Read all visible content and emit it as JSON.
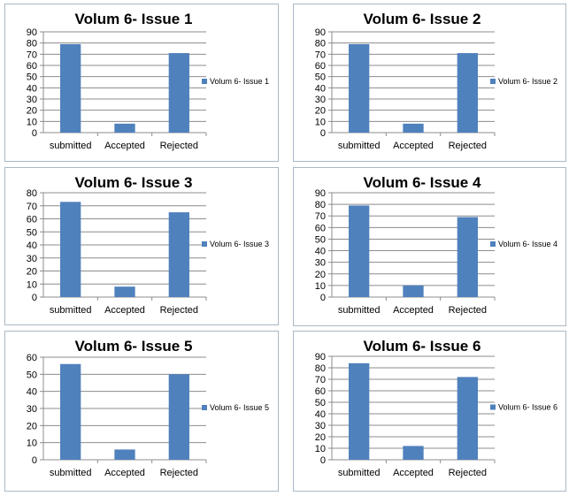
{
  "bar_color": "#4f81bd",
  "chart_data": [
    {
      "type": "bar",
      "title": "Volum 6- Issue 1",
      "categories": [
        "submitted",
        "Accepted",
        "Rejected"
      ],
      "series": [
        {
          "name": "Volum 6- Issue 1",
          "values": [
            79,
            8,
            71
          ]
        }
      ],
      "ylim": [
        0,
        90
      ],
      "ystep": 10,
      "grid": true,
      "legend": "right"
    },
    {
      "type": "bar",
      "title": "Volum 6- Issue 2",
      "categories": [
        "submitted",
        "Accepted",
        "Rejected"
      ],
      "series": [
        {
          "name": "Volum 6- Issue 2",
          "values": [
            79,
            8,
            71
          ]
        }
      ],
      "ylim": [
        0,
        90
      ],
      "ystep": 10,
      "grid": true,
      "legend": "right"
    },
    {
      "type": "bar",
      "title": "Volum 6- Issue 3",
      "categories": [
        "submitted",
        "Accepted",
        "Rejected"
      ],
      "series": [
        {
          "name": "Volum 6- Issue 3",
          "values": [
            73,
            8,
            65
          ]
        }
      ],
      "ylim": [
        0,
        80
      ],
      "ystep": 10,
      "grid": true,
      "legend": "right"
    },
    {
      "type": "bar",
      "title": "Volum 6- Issue 4",
      "categories": [
        "submitted",
        "Accepted",
        "Rejected"
      ],
      "series": [
        {
          "name": "Volum 6- Issue 4",
          "values": [
            79,
            10,
            69
          ]
        }
      ],
      "ylim": [
        0,
        90
      ],
      "ystep": 10,
      "grid": true,
      "legend": "right"
    },
    {
      "type": "bar",
      "title": "Volum 6- Issue 5",
      "categories": [
        "submitted",
        "Accepted",
        "Rejected"
      ],
      "series": [
        {
          "name": "Volum 6- Issue 5",
          "values": [
            56,
            6,
            50
          ]
        }
      ],
      "ylim": [
        0,
        60
      ],
      "ystep": 10,
      "grid": true,
      "legend": "right"
    },
    {
      "type": "bar",
      "title": "Volum 6- Issue 6",
      "categories": [
        "submitted",
        "Accepted",
        "Rejected"
      ],
      "series": [
        {
          "name": "Volum 6- Issue 6",
          "values": [
            84,
            12,
            72
          ]
        }
      ],
      "ylim": [
        0,
        90
      ],
      "ystep": 10,
      "grid": true,
      "legend": "right"
    }
  ]
}
